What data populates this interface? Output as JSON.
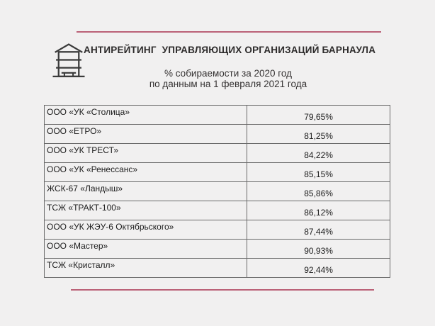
{
  "page": {
    "background_color": "#f1f0f0",
    "accent_line_color": "#bb6278",
    "text_color": "#2d2b2b",
    "table_border_color": "#6a6a6a"
  },
  "header": {
    "icon": "building-icon",
    "title": "АНТИРЕЙТИНГ  УПРАВЛЯЮЩИХ ОРГАНИЗАЦИЙ БАРНАУЛА",
    "subtitle_line1": "% собираемости за 2020 год",
    "subtitle_line2": "по данным на 1 февраля 2021 года"
  },
  "chart_data": {
    "type": "table",
    "title": "АНТИРЕЙТИНГ  УПРАВЛЯЮЩИХ ОРГАНИЗАЦИЙ БАРНАУЛА",
    "subtitle": "% собираемости за 2020 год по данным на 1 февраля 2021 года",
    "rows": [
      {
        "organization": "ООО «УК «Столица»",
        "value_percent": "79,65%",
        "value": 79.65
      },
      {
        "organization": "ООО «ЕТРО»",
        "value_percent": "81,25%",
        "value": 81.25
      },
      {
        "organization": "ООО «УК ТРЕСТ»",
        "value_percent": "84,22%",
        "value": 84.22
      },
      {
        "organization": "ООО «УК «Ренессанс»",
        "value_percent": "85,15%",
        "value": 85.15
      },
      {
        "organization": "ЖСК-67 «Ландыш»",
        "value_percent": "85,86%",
        "value": 85.86
      },
      {
        "organization": "ТСЖ «ТРАКТ-100»",
        "value_percent": "86,12%",
        "value": 86.12
      },
      {
        "organization": "ООО «УК ЖЭУ-6 Октябрьского»",
        "value_percent": "87,44%",
        "value": 87.44
      },
      {
        "organization": "ООО «Мастер»",
        "value_percent": "90,93%",
        "value": 90.93
      },
      {
        "organization": "ТСЖ «Кристалл»",
        "value_percent": "92,44%",
        "value": 92.44
      }
    ]
  }
}
